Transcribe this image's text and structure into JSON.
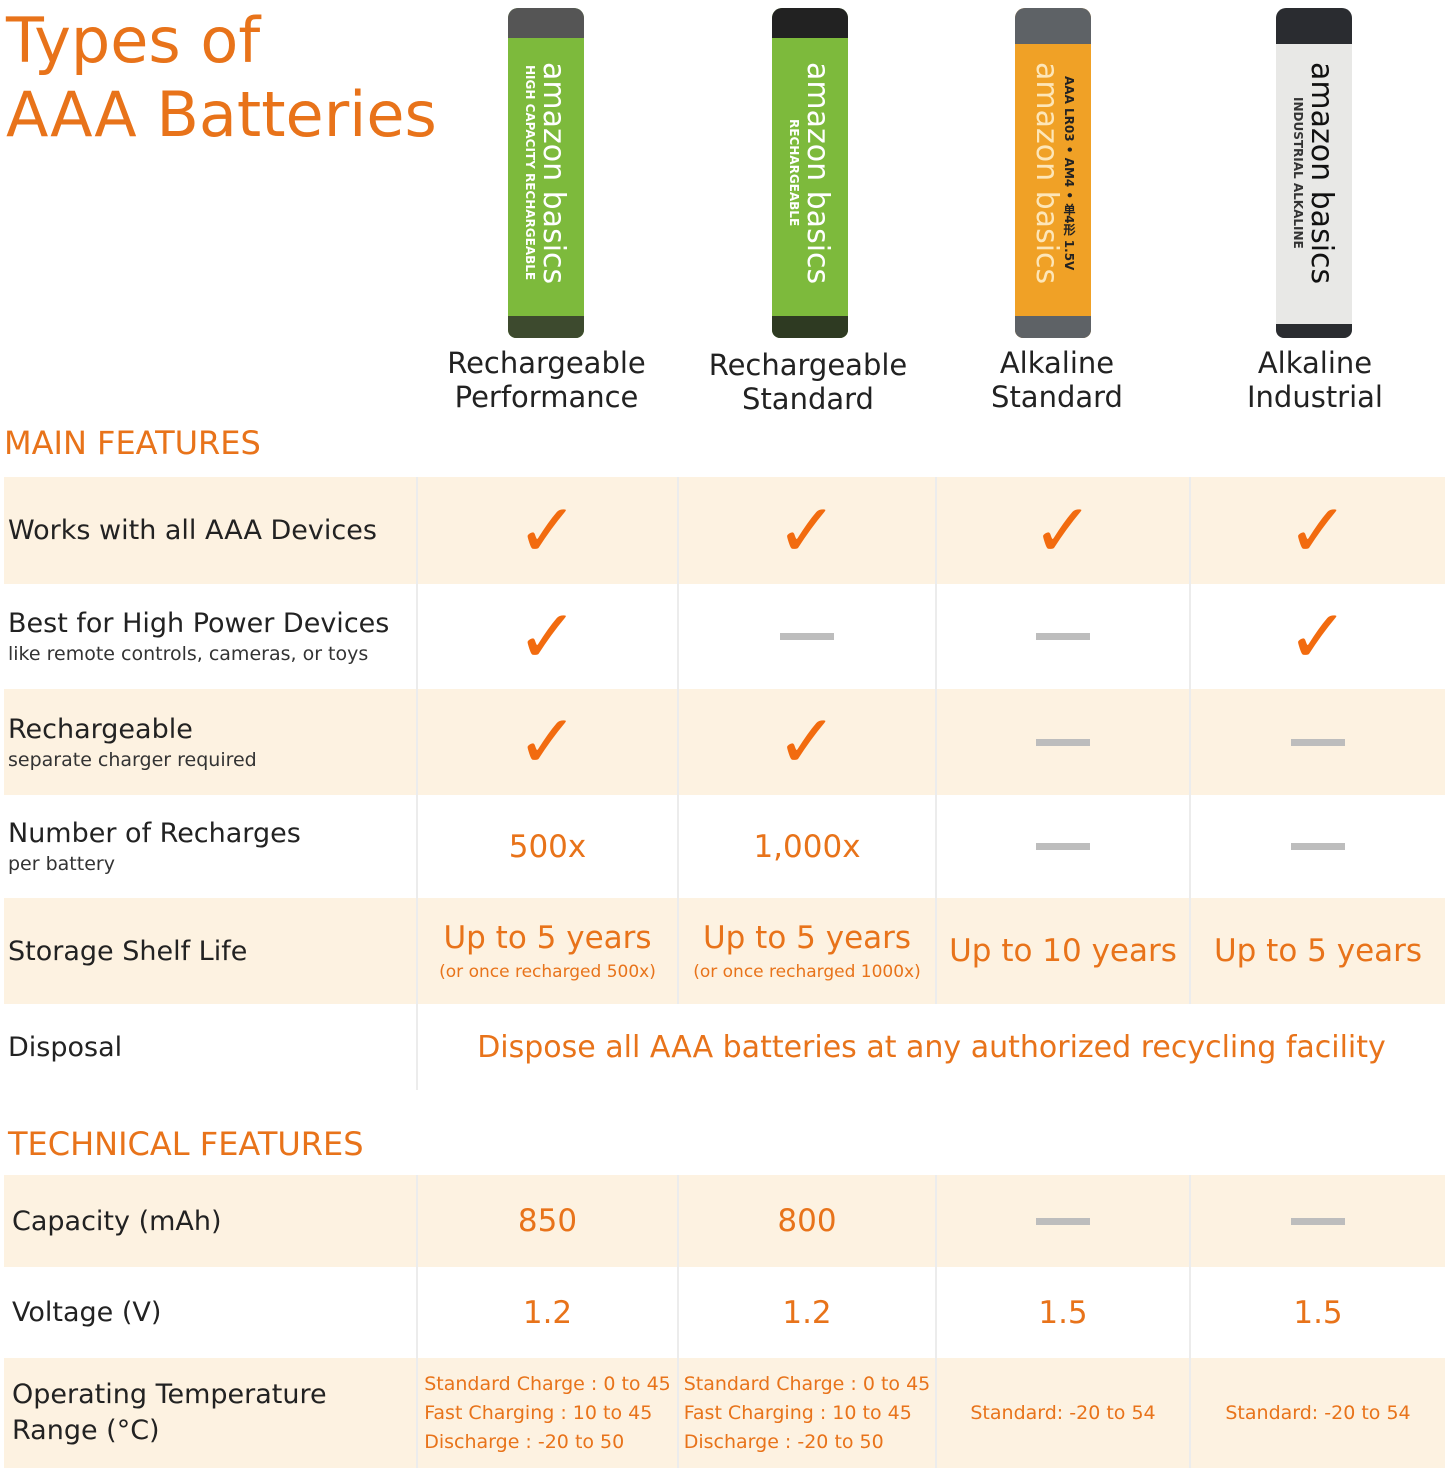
{
  "title": [
    "Types of",
    "AAA Batteries"
  ],
  "colors": {
    "accent": "#E8731A",
    "check": "#F26B0F",
    "shade": "#FDF2E1",
    "dash": "#BDBDBD"
  },
  "batteries": [
    {
      "brand": "amazon basics",
      "text": "HIGH CAPACITY RECHARGEABLE",
      "name": "Rechargeable",
      "type": "Performance"
    },
    {
      "brand": "amazon basics",
      "text": "RECHARGEABLE",
      "name": "Rechargeable",
      "type": "Standard"
    },
    {
      "brand": "amazon basics",
      "text": "AAA LR03 • AM4 • 单4形 1.5V",
      "name": "Alkaline",
      "type": "Standard"
    },
    {
      "brand": "amazon basics",
      "text": "INDUSTRIAL ALKALINE",
      "name": "Alkaline",
      "type": "Industrial"
    }
  ],
  "main_title": "MAIN FEATURES",
  "main": [
    {
      "label": "Works with all AAA Devices",
      "sub": "",
      "cells": [
        "check",
        "check",
        "check",
        "check"
      ]
    },
    {
      "label": "Best for High Power Devices",
      "sub": "like remote controls, cameras, or toys",
      "cells": [
        "check",
        "dash",
        "dash",
        "check"
      ]
    },
    {
      "label": "Rechargeable",
      "sub": "separate charger required",
      "cells": [
        "check",
        "check",
        "dash",
        "dash"
      ]
    },
    {
      "label": "Number of Recharges",
      "sub": "per battery",
      "cells": [
        "500x",
        "1,000x",
        "dash",
        "dash"
      ]
    },
    {
      "label": "Storage Shelf Life",
      "sub": "",
      "cells": [
        "Up to 5 years",
        "Up to 5 years",
        "Up to 10 years",
        "Up to 5 years"
      ],
      "notes": [
        "(or once recharged 500x)",
        "(or once recharged 1000x)",
        "",
        ""
      ]
    }
  ],
  "disposal": {
    "label": "Disposal",
    "text": "Dispose all AAA batteries at any authorized recycling facility"
  },
  "tech_title": "TECHNICAL FEATURES",
  "tech": [
    {
      "label": "Capacity (mAh)",
      "cells": [
        "850",
        "800",
        "dash",
        "dash"
      ]
    },
    {
      "label": "Voltage (V)",
      "cells": [
        "1.2",
        "1.2",
        "1.5",
        "1.5"
      ]
    }
  ],
  "temp": {
    "label": [
      "Operating Temperature",
      "Range (°C)"
    ],
    "cells": [
      [
        "Standard Charge : 0 to 45",
        "Fast Charging : 10 to 45",
        "Discharge : -20 to 50"
      ],
      [
        "Standard Charge : 0 to 45",
        "Fast Charging : 10 to 45",
        "Discharge : -20 to 50"
      ],
      [
        "Standard: -20 to 54"
      ],
      [
        "Standard: -20 to 54"
      ]
    ]
  }
}
